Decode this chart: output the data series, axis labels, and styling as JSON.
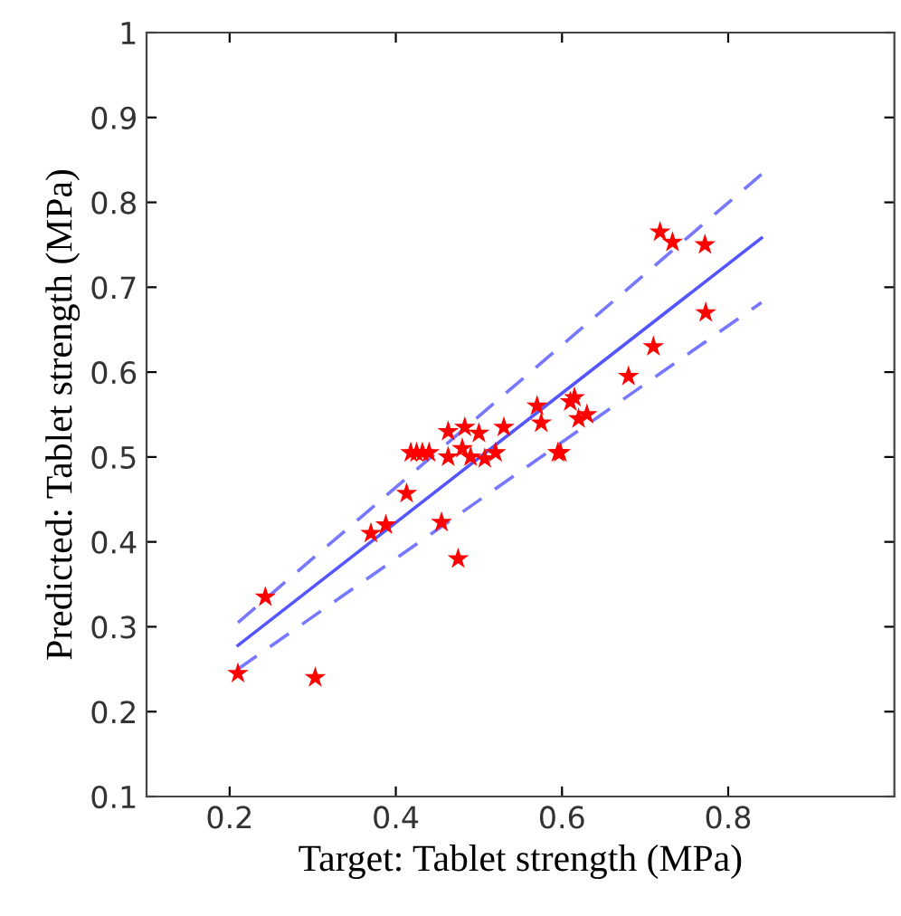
{
  "chart_data": {
    "type": "scatter",
    "xlabel": "Target: Tablet strength (MPa)",
    "ylabel": "Predicted: Tablet strength (MPa)",
    "xlim": [
      0.1,
      1.0
    ],
    "ylim": [
      0.1,
      1.0
    ],
    "xticks": [
      0.2,
      0.4,
      0.6,
      0.8
    ],
    "yticks": [
      0.1,
      0.2,
      0.3,
      0.4,
      0.5,
      0.6,
      0.7,
      0.8,
      0.9,
      1
    ],
    "grid": false,
    "legend": false,
    "series": [
      {
        "color": "#ff0000",
        "marker": "star",
        "x": [
          0.21,
          0.243,
          0.303,
          0.37,
          0.388,
          0.413,
          0.418,
          0.425,
          0.432,
          0.44,
          0.455,
          0.463,
          0.463,
          0.475,
          0.48,
          0.483,
          0.49,
          0.5,
          0.507,
          0.52,
          0.53,
          0.57,
          0.575,
          0.595,
          0.598,
          0.61,
          0.615,
          0.62,
          0.63,
          0.68,
          0.71,
          0.718,
          0.733,
          0.772,
          0.773
        ],
        "values": [
          0.245,
          0.335,
          0.24,
          0.41,
          0.42,
          0.457,
          0.505,
          0.505,
          0.505,
          0.505,
          0.423,
          0.53,
          0.5,
          0.38,
          0.51,
          0.535,
          0.5,
          0.528,
          0.498,
          0.505,
          0.535,
          0.56,
          0.54,
          0.505,
          0.505,
          0.565,
          0.57,
          0.545,
          0.55,
          0.595,
          0.63,
          0.765,
          0.753,
          0.75,
          0.67
        ]
      },
      {
        "type": "line",
        "color": "#5555ff",
        "line_style": "solid",
        "x": [
          0.21,
          0.84
        ],
        "values": [
          0.278,
          0.758
        ]
      },
      {
        "type": "line",
        "color": "#7777ff",
        "line_style": "dashed",
        "x": [
          0.21,
          0.84
        ],
        "values": [
          0.305,
          0.833
        ]
      },
      {
        "type": "line",
        "color": "#7777ff",
        "line_style": "dashed",
        "x": [
          0.21,
          0.84
        ],
        "values": [
          0.25,
          0.682
        ]
      }
    ]
  }
}
